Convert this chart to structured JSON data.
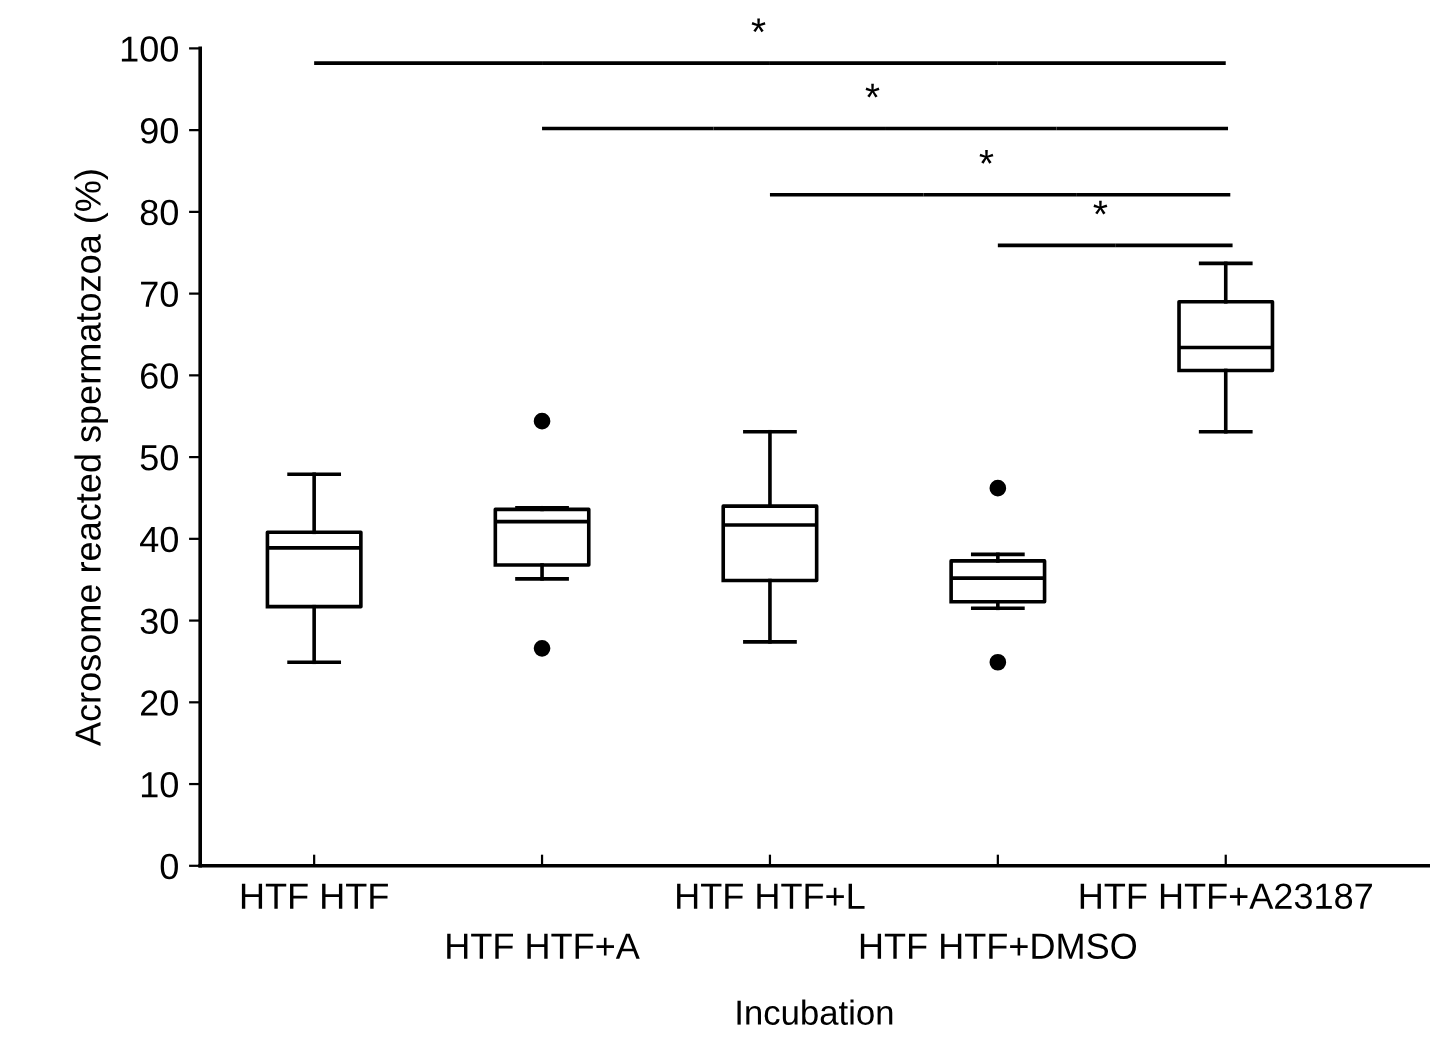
{
  "chart_data": {
    "type": "box",
    "xlabel": "Incubation",
    "ylabel": "Acrosome reacted spermatozoa (%)",
    "categories": [
      "HTF HTF",
      "HTF HTF+A",
      "HTF HTF+L",
      "HTF HTF+DMSO",
      "HTF HTF+A23187"
    ],
    "boxes": [
      {
        "low": 24.9,
        "q1": 31.7,
        "median": 38.9,
        "q3": 40.8,
        "high": 47.9
      },
      {
        "low": 35.1,
        "q1": 36.8,
        "median": 42.1,
        "q3": 43.6,
        "high": 43.8,
        "outliers": [
          54.4,
          26.6
        ]
      },
      {
        "low": 27.4,
        "q1": 34.9,
        "median": 41.7,
        "q3": 44.0,
        "high": 53.1
      },
      {
        "low": 31.5,
        "q1": 32.3,
        "median": 35.2,
        "q3": 37.3,
        "high": 38.1,
        "outliers": [
          46.2,
          24.9
        ]
      },
      {
        "low": 53.1,
        "q1": 60.6,
        "median": 63.4,
        "q3": 69.0,
        "high": 73.7
      }
    ],
    "color": "#000000",
    "ylim": [
      0,
      100
    ],
    "yticks": [
      0,
      10,
      20,
      30,
      40,
      50,
      60,
      70,
      80,
      90,
      100
    ],
    "grid": false,
    "legend": false,
    "annotations": [
      "*",
      "*",
      "*",
      "*"
    ]
  }
}
